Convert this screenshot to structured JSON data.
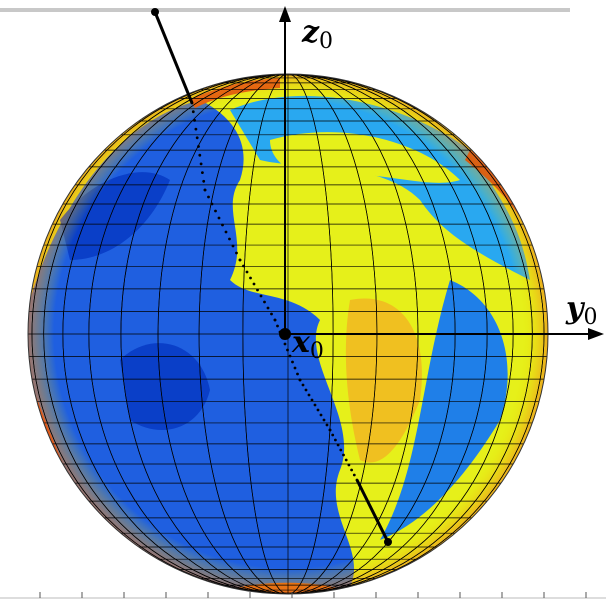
{
  "labels": {
    "z": {
      "base": "z",
      "sub": "0"
    },
    "y": {
      "base": "y",
      "sub": "0"
    },
    "x": {
      "base": "x",
      "sub": "0"
    }
  }
}
